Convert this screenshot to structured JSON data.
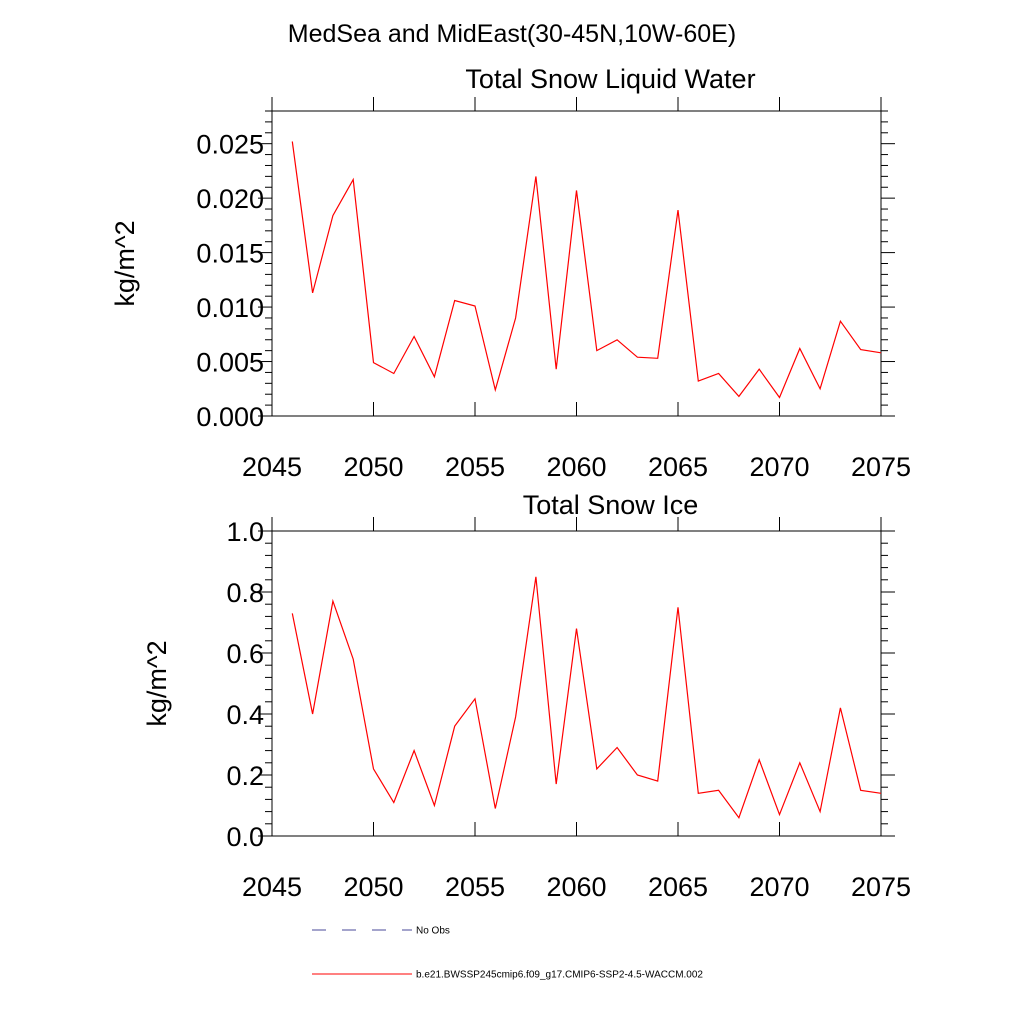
{
  "figure": {
    "main_title": "MedSea and MidEast(30-45N,10W-60E)"
  },
  "colors": {
    "model_line": "#ff0000",
    "obs_line": "#4a4a9a",
    "axis": "#000000"
  },
  "legend": {
    "entries": [
      {
        "label": "No Obs",
        "style": "dashed",
        "color": "#4a4a9a"
      },
      {
        "label": "b.e21.BWSSP245cmip6.f09_g17.CMIP6-SSP2-4.5-WACCM.002",
        "style": "solid",
        "color": "#ff0000"
      }
    ]
  },
  "chart_data": [
    {
      "type": "line",
      "title": "Total Snow Liquid Water",
      "xlabel": "",
      "ylabel": "kg/m^2",
      "xlim": [
        2045,
        2075
      ],
      "ylim": [
        0,
        0.028
      ],
      "x_ticks": [
        2045,
        2050,
        2055,
        2060,
        2065,
        2070,
        2075
      ],
      "x_tick_labels": [
        "2045",
        "2050",
        "2055",
        "2060",
        "2065",
        "2070",
        "2075"
      ],
      "y_ticks": [
        0,
        0.005,
        0.01,
        0.015,
        0.02,
        0.025
      ],
      "y_tick_labels": [
        "0.000",
        "0.005",
        "0.010",
        "0.015",
        "0.020",
        "0.025"
      ],
      "grid": false,
      "series": [
        {
          "color": "#ff0000",
          "x": [
            2046,
            2047,
            2048,
            2049,
            2050,
            2051,
            2052,
            2053,
            2054,
            2055,
            2056,
            2057,
            2058,
            2059,
            2060,
            2061,
            2062,
            2063,
            2064,
            2065,
            2066,
            2067,
            2068,
            2069,
            2070,
            2071,
            2072,
            2073,
            2074,
            2075
          ],
          "values": [
            0.0252,
            0.0113,
            0.0184,
            0.0217,
            0.0049,
            0.0039,
            0.0073,
            0.0036,
            0.0106,
            0.0101,
            0.0024,
            0.009,
            0.022,
            0.0043,
            0.0207,
            0.006,
            0.007,
            0.0054,
            0.0053,
            0.0189,
            0.0032,
            0.0039,
            0.0018,
            0.0043,
            0.0017,
            0.0062,
            0.0025,
            0.0087,
            0.0061,
            0.0058
          ]
        }
      ]
    },
    {
      "type": "line",
      "title": "Total Snow Ice",
      "xlabel": "",
      "ylabel": "kg/m^2",
      "xlim": [
        2045,
        2075
      ],
      "ylim": [
        0,
        1.0
      ],
      "x_ticks": [
        2045,
        2050,
        2055,
        2060,
        2065,
        2070,
        2075
      ],
      "x_tick_labels": [
        "2045",
        "2050",
        "2055",
        "2060",
        "2065",
        "2070",
        "2075"
      ],
      "y_ticks": [
        0,
        0.2,
        0.4,
        0.6,
        0.8,
        1.0
      ],
      "y_tick_labels": [
        "0.0",
        "0.2",
        "0.4",
        "0.6",
        "0.8",
        "1.0"
      ],
      "grid": false,
      "series": [
        {
          "color": "#ff0000",
          "x": [
            2046,
            2047,
            2048,
            2049,
            2050,
            2051,
            2052,
            2053,
            2054,
            2055,
            2056,
            2057,
            2058,
            2059,
            2060,
            2061,
            2062,
            2063,
            2064,
            2065,
            2066,
            2067,
            2068,
            2069,
            2070,
            2071,
            2072,
            2073,
            2074,
            2075
          ],
          "values": [
            0.73,
            0.4,
            0.77,
            0.58,
            0.22,
            0.11,
            0.28,
            0.1,
            0.36,
            0.45,
            0.09,
            0.39,
            0.85,
            0.17,
            0.68,
            0.22,
            0.29,
            0.2,
            0.18,
            0.75,
            0.14,
            0.15,
            0.06,
            0.25,
            0.07,
            0.24,
            0.08,
            0.42,
            0.15,
            0.14
          ]
        }
      ]
    }
  ]
}
